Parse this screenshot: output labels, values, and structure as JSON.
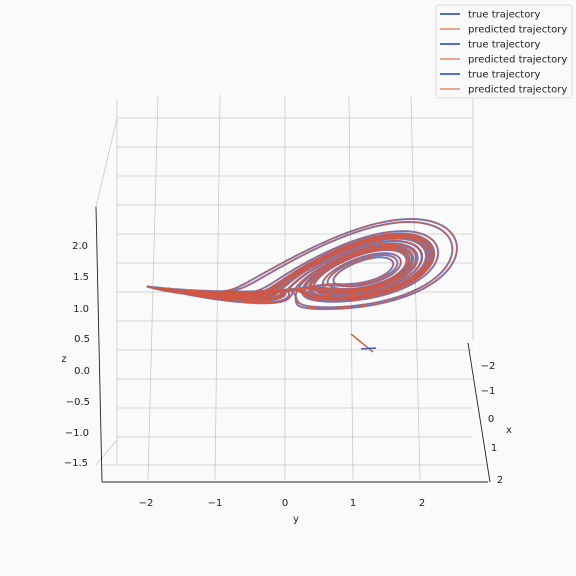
{
  "chart_data": {
    "type": "line",
    "projection": "3d",
    "xlabel": "x",
    "ylabel": "y",
    "zlabel": "z",
    "x_ticks": [
      "−2",
      "−1",
      "0",
      "1",
      "2"
    ],
    "y_ticks": [
      "−2",
      "−1",
      "0",
      "1",
      "2"
    ],
    "z_ticks": [
      "−1.5",
      "−1.0",
      "−0.5",
      "0.0",
      "0.5",
      "1.0",
      "1.5",
      "2.0"
    ],
    "xlim": [
      -2.6,
      2.6
    ],
    "ylim": [
      -2.6,
      2.9
    ],
    "zlim": [
      -1.7,
      3.0
    ],
    "grid": true,
    "legend_position": "top-right",
    "legend": [
      {
        "label": "true trajectory",
        "color": "#3a5bbf"
      },
      {
        "label": "predicted trajectory",
        "color": "#e0502a"
      },
      {
        "label": "true trajectory",
        "color": "#3a5bbf"
      },
      {
        "label": "predicted trajectory",
        "color": "#e0502a"
      },
      {
        "label": "true trajectory",
        "color": "#3a5bbf"
      },
      {
        "label": "predicted trajectory",
        "color": "#e0502a"
      }
    ],
    "series": [
      {
        "name": "true trajectory",
        "color": "#3a5bbf",
        "attractor": "Lorenz (scaled)",
        "lobes": 2,
        "turns": 14
      },
      {
        "name": "predicted trajectory",
        "color": "#e0502a",
        "attractor": "Lorenz (scaled)",
        "lobes": 2,
        "turns": 14
      }
    ]
  }
}
